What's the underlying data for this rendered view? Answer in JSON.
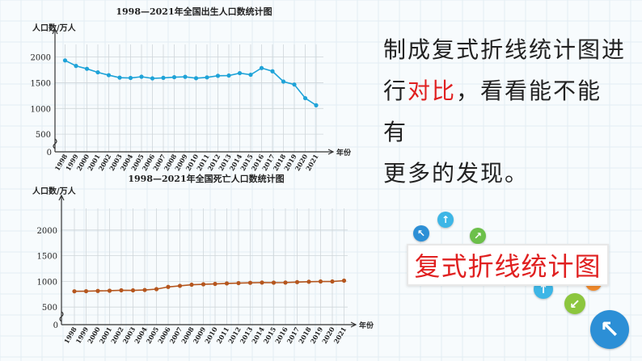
{
  "side": {
    "line1": "制成复式折线统计图进",
    "line2_pre": "行",
    "line2_hl": "对比",
    "line2_post": "，看看能不能有",
    "line3": "更多的发现。"
  },
  "banner_text": "复式折线统计图",
  "colors": {
    "births": "#1fa3d8",
    "deaths": "#b5561e",
    "highlight": "#e02020"
  },
  "icons": [
    {
      "name": "arrow-up-left-icon",
      "color": "#2c8fd6",
      "glyph": "↖"
    },
    {
      "name": "arrow-up-icon",
      "color": "#3db6e6",
      "glyph": "↑"
    },
    {
      "name": "arrow-up-right-icon",
      "color": "#6cc04a",
      "glyph": "↗"
    },
    {
      "name": "arrow-down-right-icon",
      "color": "#f08a2c",
      "glyph": "↘"
    },
    {
      "name": "arrow-up-icon",
      "color": "#3db6e6",
      "glyph": "↑"
    },
    {
      "name": "arrow-down-left-icon",
      "color": "#8cc63e",
      "glyph": "↙"
    },
    {
      "name": "arrow-up-left-icon",
      "color": "#2c8fd6",
      "glyph": "↖"
    }
  ],
  "chart_data": [
    {
      "type": "line",
      "title": "1998—2021年全国出生人口数统计图",
      "ylabel": "人口数/万人",
      "xlabel": "年份",
      "x": [
        "1998",
        "1999",
        "2000",
        "2001",
        "2002",
        "2003",
        "2004",
        "2005",
        "2006",
        "2007",
        "2008",
        "2009",
        "2010",
        "2011",
        "2012",
        "2013",
        "2014",
        "2015",
        "2016",
        "2017",
        "2018",
        "2019",
        "2020",
        "2021"
      ],
      "yticks": [
        500,
        1000,
        1500,
        2000
      ],
      "ylim": [
        0,
        2200
      ],
      "axis_break": true,
      "series": [
        {
          "values": [
            1934,
            1827,
            1771,
            1702,
            1647,
            1599,
            1593,
            1617,
            1585,
            1595,
            1608,
            1615,
            1588,
            1604,
            1635,
            1640,
            1687,
            1655,
            1786,
            1723,
            1523,
            1465,
            1200,
            1062
          ]
        }
      ]
    },
    {
      "type": "line",
      "title": "1998—2021年全国死亡人口数统计图",
      "ylabel": "人口数/万人",
      "xlabel": "年份",
      "x": [
        "1998",
        "1999",
        "2000",
        "2001",
        "2002",
        "2003",
        "2004",
        "2005",
        "2006",
        "2007",
        "2008",
        "2009",
        "2010",
        "2011",
        "2012",
        "2013",
        "2014",
        "2015",
        "2016",
        "2017",
        "2018",
        "2019",
        "2020",
        "2021"
      ],
      "yticks": [
        500,
        1000,
        1500,
        2000
      ],
      "ylim": [
        0,
        2200
      ],
      "axis_break": true,
      "series": [
        {
          "values": [
            807,
            809,
            814,
            818,
            826,
            825,
            832,
            849,
            892,
            913,
            935,
            943,
            951,
            960,
            966,
            972,
            977,
            975,
            977,
            986,
            993,
            998,
            998,
            1014
          ]
        }
      ]
    }
  ]
}
